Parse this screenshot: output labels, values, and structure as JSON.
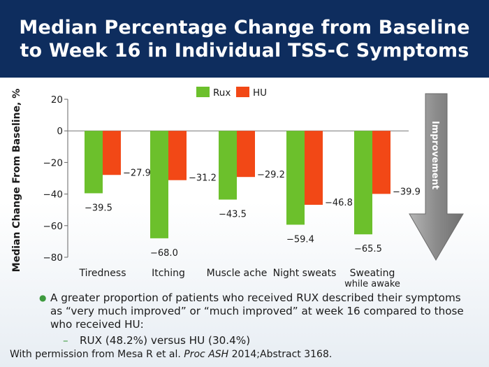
{
  "header": {
    "title": "Median Percentage Change from Baseline\nto Week 16 in Individual TSS-C Symptoms"
  },
  "colors": {
    "rux": "#6cc02c",
    "hu": "#f24816",
    "header_bg": "#0e2d5e",
    "arrow": "#8b8b8b"
  },
  "chart_data": {
    "type": "bar",
    "categories": [
      "Tiredness",
      "Itching",
      "Muscle ache",
      "Night sweats",
      "Sweating while awake"
    ],
    "category_lines": [
      [
        "Tiredness"
      ],
      [
        "Itching"
      ],
      [
        "Muscle ache"
      ],
      [
        "Night sweats"
      ],
      [
        "Sweating",
        "while awake"
      ]
    ],
    "series": [
      {
        "name": "Rux",
        "values": [
          -39.5,
          -68.0,
          -43.5,
          -59.4,
          -65.5
        ],
        "labels": [
          "−39.5",
          "−68.0",
          "−43.5",
          "−59.4",
          "−65.5"
        ]
      },
      {
        "name": "HU",
        "values": [
          -27.9,
          -31.2,
          -29.2,
          -46.8,
          -39.9
        ],
        "labels": [
          "−27.9",
          "−31.2",
          "−29.2",
          "−46.8",
          "−39.9"
        ]
      }
    ],
    "ylabel": "Median Change From Baseline, %",
    "ylim": [
      -80,
      20
    ],
    "yticks": [
      20,
      0,
      -20,
      -40,
      -60,
      -80
    ],
    "ytick_labels": [
      "20",
      "0",
      "−20",
      "−40",
      "−60",
      "−80"
    ],
    "legend_position": "top",
    "arrow_label": "Improvement"
  },
  "bullets": {
    "main": "A greater proportion of patients who received RUX described their symptoms as “very much improved” or “much improved” at week 16 compared to those who received HU:",
    "sub_dash": "–",
    "sub": "RUX (48.2%) versus HU (30.4%)"
  },
  "footer": {
    "prefix": "With permission from Mesa R et al. ",
    "journal": "Proc ASH",
    "suffix": " 2014;Abstract 3168."
  }
}
